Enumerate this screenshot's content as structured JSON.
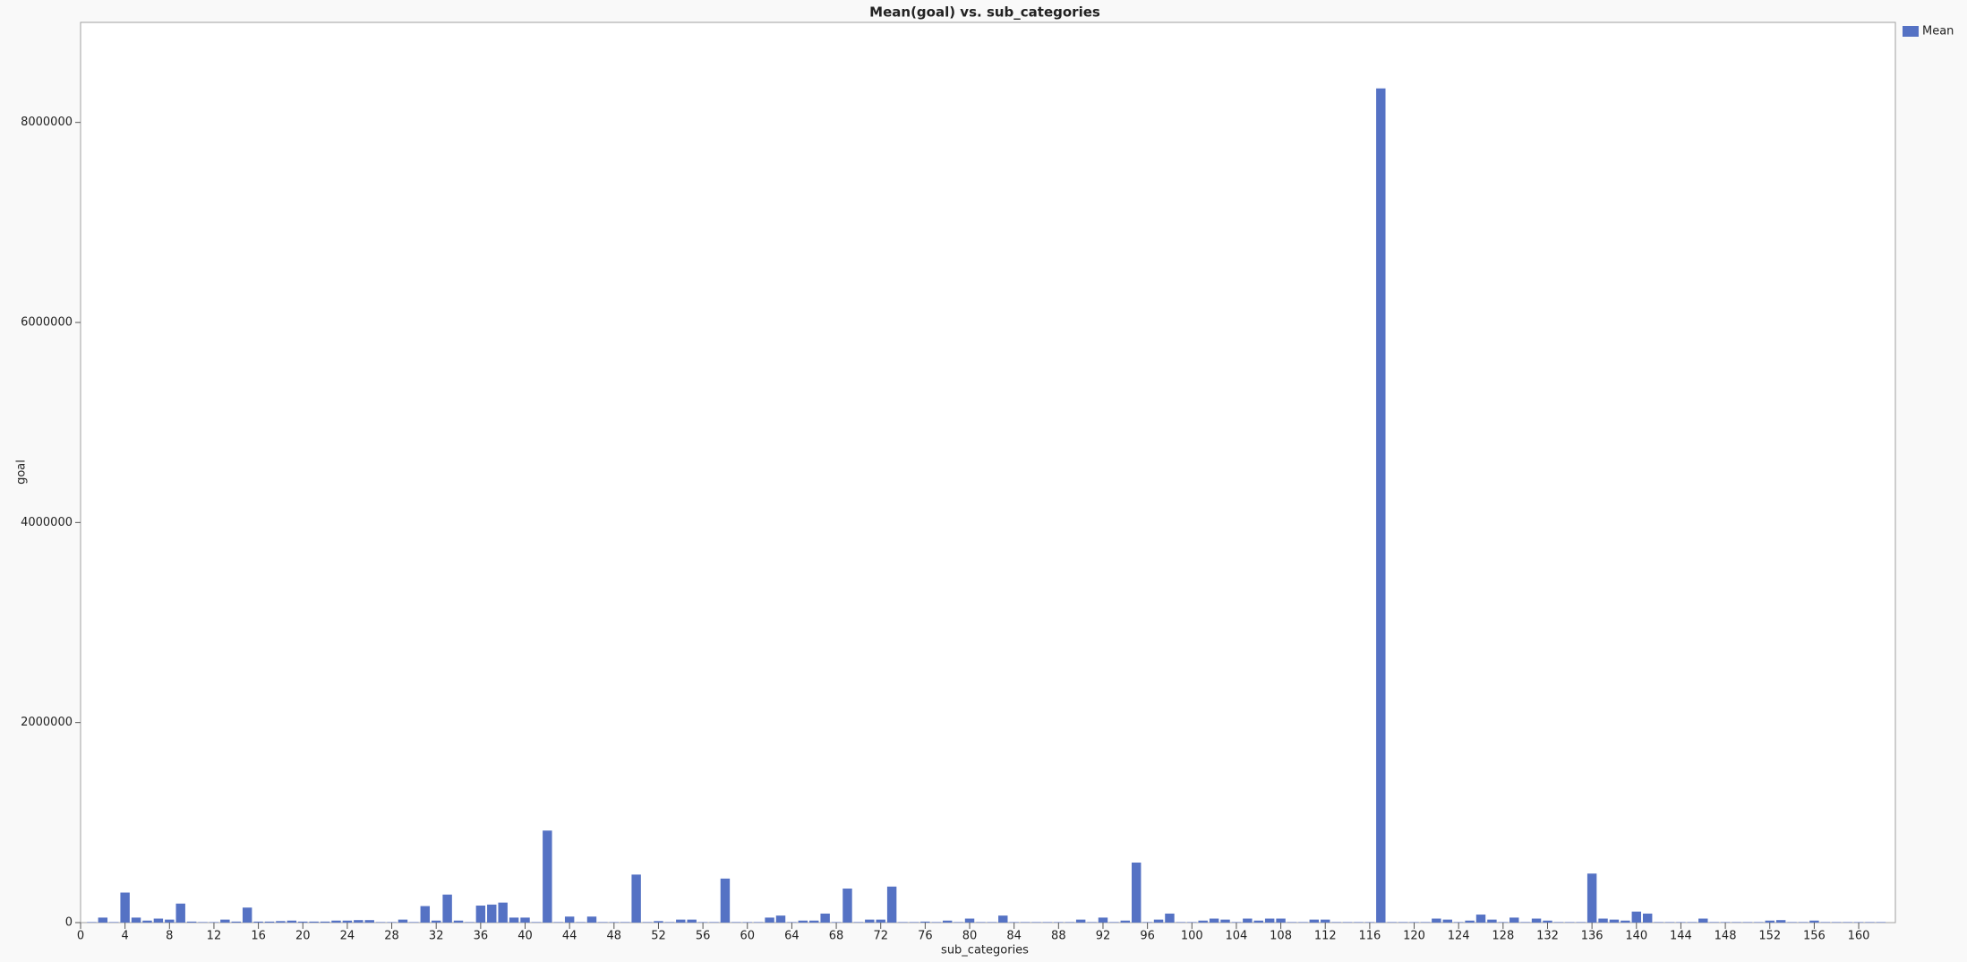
{
  "chart_data": {
    "type": "bar",
    "title": "Mean(goal) vs. sub_categories",
    "x_label": "sub_categories",
    "y_label": "goal",
    "color": "#5572c4",
    "series": [
      {
        "name": "Mean",
        "color": "#5572c4",
        "x": [
          1,
          2,
          3,
          4,
          5,
          6,
          7,
          8,
          9,
          10,
          11,
          12,
          13,
          14,
          15,
          16,
          17,
          18,
          19,
          20,
          21,
          22,
          23,
          24,
          25,
          26,
          27,
          28,
          29,
          30,
          31,
          32,
          33,
          34,
          35,
          36,
          37,
          38,
          39,
          40,
          41,
          42,
          43,
          44,
          45,
          46,
          47,
          48,
          49,
          50,
          51,
          52,
          53,
          54,
          55,
          56,
          57,
          58,
          59,
          60,
          61,
          62,
          63,
          64,
          65,
          66,
          67,
          68,
          69,
          70,
          71,
          72,
          73,
          74,
          75,
          76,
          77,
          78,
          79,
          80,
          81,
          82,
          83,
          84,
          85,
          86,
          87,
          88,
          89,
          90,
          91,
          92,
          93,
          94,
          95,
          96,
          97,
          98,
          99,
          100,
          101,
          102,
          103,
          104,
          105,
          106,
          107,
          108,
          109,
          110,
          111,
          112,
          113,
          114,
          115,
          116,
          117,
          118,
          119,
          120,
          121,
          122,
          123,
          124,
          125,
          126,
          127,
          128,
          129,
          130,
          131,
          132,
          133,
          134,
          135,
          136,
          137,
          138,
          139,
          140,
          141,
          142,
          143,
          144,
          145,
          146,
          147,
          148,
          149,
          150,
          151,
          152,
          153,
          154,
          155,
          156,
          157,
          158,
          159,
          160,
          161,
          162
        ],
        "values": [
          5000,
          50000,
          5000,
          300000,
          50000,
          20000,
          40000,
          30000,
          190000,
          10000,
          5000,
          5000,
          30000,
          10000,
          150000,
          10000,
          10000,
          15000,
          20000,
          10000,
          10000,
          10000,
          20000,
          20000,
          25000,
          25000,
          5000,
          5000,
          30000,
          5000,
          165000,
          20000,
          280000,
          20000,
          5000,
          170000,
          180000,
          200000,
          50000,
          50000,
          5000,
          920000,
          5000,
          60000,
          5000,
          60000,
          5000,
          5000,
          5000,
          480000,
          5000,
          15000,
          5000,
          30000,
          30000,
          5000,
          5000,
          440000,
          5000,
          5000,
          5000,
          50000,
          70000,
          5000,
          20000,
          20000,
          90000,
          5000,
          340000,
          5000,
          30000,
          30000,
          360000,
          5000,
          5000,
          10000,
          5000,
          20000,
          5000,
          40000,
          5000,
          5000,
          70000,
          5000,
          5000,
          5000,
          5000,
          5000,
          5000,
          30000,
          5000,
          50000,
          5000,
          20000,
          600000,
          5000,
          30000,
          90000,
          5000,
          5000,
          20000,
          40000,
          30000,
          5000,
          40000,
          20000,
          40000,
          40000,
          5000,
          5000,
          30000,
          30000,
          5000,
          5000,
          5000,
          5000,
          8340000,
          5000,
          5000,
          5000,
          5000,
          40000,
          30000,
          5000,
          20000,
          80000,
          30000,
          5000,
          50000,
          5000,
          40000,
          20000,
          5000,
          5000,
          5000,
          490000,
          40000,
          30000,
          20000,
          110000,
          90000,
          5000,
          5000,
          5000,
          5000,
          40000,
          5000,
          5000,
          5000,
          5000,
          5000,
          20000,
          25000,
          5000,
          5000,
          20000,
          5000,
          5000,
          5000,
          5000,
          5000,
          5000
        ]
      }
    ],
    "xlim": [
      0,
      163.3
    ],
    "xticks": [
      0,
      4,
      8,
      12,
      16,
      20,
      24,
      28,
      32,
      36,
      40,
      44,
      48,
      52,
      56,
      60,
      64,
      68,
      72,
      76,
      80,
      84,
      88,
      92,
      96,
      100,
      104,
      108,
      112,
      116,
      120,
      124,
      128,
      132,
      136,
      140,
      144,
      148,
      152,
      156,
      160
    ],
    "ylim": [
      0,
      9000000
    ],
    "yticks": [
      0,
      2000000,
      4000000,
      6000000,
      8000000
    ],
    "legend": "top-right"
  }
}
